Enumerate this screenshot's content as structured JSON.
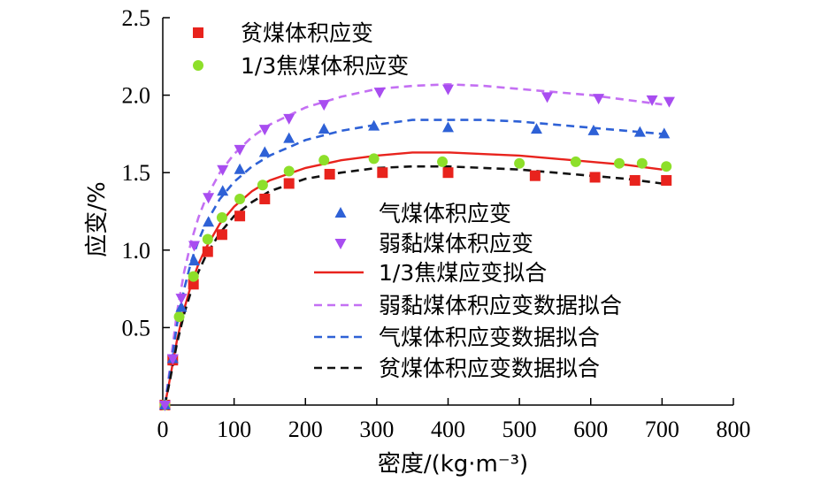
{
  "chart_data": {
    "type": "scatter",
    "xlabel": "密度/(kg·m⁻³)",
    "ylabel": "应变/%",
    "xlim": [
      0,
      800
    ],
    "ylim": [
      0,
      2.5
    ],
    "xticks": [
      "0",
      "100",
      "200",
      "300",
      "400",
      "500",
      "600",
      "700",
      "800"
    ],
    "yticks": [
      "0.5",
      "1.0",
      "1.5",
      "2.0",
      "2.5"
    ],
    "grid": false,
    "series": [
      {
        "name": "贫煤体积应变",
        "marker": "square",
        "color": "#e8231d",
        "points": [
          [
            3,
            0
          ],
          [
            14,
            0.29
          ],
          [
            43,
            0.78
          ],
          [
            63,
            0.99
          ],
          [
            83,
            1.1
          ],
          [
            108,
            1.22
          ],
          [
            143,
            1.33
          ],
          [
            177,
            1.43
          ],
          [
            234,
            1.49
          ],
          [
            308,
            1.5
          ],
          [
            400,
            1.5
          ],
          [
            522,
            1.48
          ],
          [
            606,
            1.47
          ],
          [
            662,
            1.45
          ],
          [
            706,
            1.45
          ]
        ]
      },
      {
        "name": "1/3焦煤体积应变",
        "marker": "circle",
        "color": "#8ddf2a",
        "points": [
          [
            3,
            0
          ],
          [
            23,
            0.57
          ],
          [
            43,
            0.83
          ],
          [
            63,
            1.07
          ],
          [
            83,
            1.21
          ],
          [
            108,
            1.33
          ],
          [
            140,
            1.42
          ],
          [
            177,
            1.51
          ],
          [
            226,
            1.58
          ],
          [
            296,
            1.59
          ],
          [
            392,
            1.57
          ],
          [
            500,
            1.56
          ],
          [
            579,
            1.57
          ],
          [
            640,
            1.56
          ],
          [
            672,
            1.56
          ],
          [
            706,
            1.54
          ]
        ]
      },
      {
        "name": "气煤体积应变",
        "marker": "triangle-up",
        "color": "#2e61d6",
        "points": [
          [
            3,
            0
          ],
          [
            14,
            0.3
          ],
          [
            26,
            0.63
          ],
          [
            44,
            0.93
          ],
          [
            64,
            1.18
          ],
          [
            84,
            1.38
          ],
          [
            108,
            1.52
          ],
          [
            143,
            1.63
          ],
          [
            177,
            1.72
          ],
          [
            226,
            1.78
          ],
          [
            296,
            1.8
          ],
          [
            400,
            1.79
          ],
          [
            524,
            1.78
          ],
          [
            604,
            1.77
          ],
          [
            669,
            1.76
          ],
          [
            703,
            1.75
          ]
        ]
      },
      {
        "name": "弱黏煤体积应变",
        "marker": "triangle-down",
        "color": "#a84df0",
        "points": [
          [
            3,
            0
          ],
          [
            14,
            0.3
          ],
          [
            26,
            0.69
          ],
          [
            44,
            1.03
          ],
          [
            64,
            1.34
          ],
          [
            84,
            1.52
          ],
          [
            108,
            1.65
          ],
          [
            143,
            1.78
          ],
          [
            177,
            1.85
          ],
          [
            226,
            1.94
          ],
          [
            304,
            2.02
          ],
          [
            400,
            2.04
          ],
          [
            539,
            1.99
          ],
          [
            611,
            1.98
          ],
          [
            686,
            1.97
          ],
          [
            710,
            1.96
          ]
        ]
      }
    ],
    "fits": [
      {
        "name": "1/3焦煤应变拟合",
        "color": "#e8231d",
        "dash": "solid",
        "points": [
          [
            3,
            0
          ],
          [
            10,
            0.17
          ],
          [
            20,
            0.42
          ],
          [
            30,
            0.62
          ],
          [
            40,
            0.78
          ],
          [
            50,
            0.91
          ],
          [
            60,
            1.01
          ],
          [
            80,
            1.17
          ],
          [
            100,
            1.28
          ],
          [
            125,
            1.38
          ],
          [
            150,
            1.45
          ],
          [
            200,
            1.53
          ],
          [
            250,
            1.58
          ],
          [
            300,
            1.61
          ],
          [
            350,
            1.63
          ],
          [
            400,
            1.63
          ],
          [
            450,
            1.62
          ],
          [
            500,
            1.61
          ],
          [
            550,
            1.59
          ],
          [
            600,
            1.57
          ],
          [
            650,
            1.55
          ],
          [
            700,
            1.52
          ]
        ]
      },
      {
        "name": "弱黏煤体积应变数据拟合",
        "color": "#c470f3",
        "dash": "dashed",
        "points": [
          [
            3,
            0
          ],
          [
            10,
            0.24
          ],
          [
            20,
            0.6
          ],
          [
            30,
            0.86
          ],
          [
            40,
            1.06
          ],
          [
            50,
            1.21
          ],
          [
            60,
            1.33
          ],
          [
            80,
            1.5
          ],
          [
            100,
            1.62
          ],
          [
            125,
            1.73
          ],
          [
            150,
            1.81
          ],
          [
            200,
            1.92
          ],
          [
            250,
            1.99
          ],
          [
            300,
            2.04
          ],
          [
            350,
            2.06
          ],
          [
            400,
            2.07
          ],
          [
            450,
            2.06
          ],
          [
            500,
            2.04
          ],
          [
            550,
            2.02
          ],
          [
            600,
            2.0
          ],
          [
            650,
            1.97
          ],
          [
            700,
            1.94
          ]
        ]
      },
      {
        "name": "气煤体积应变数据拟合",
        "color": "#2e61d6",
        "dash": "dashed",
        "points": [
          [
            3,
            0
          ],
          [
            10,
            0.21
          ],
          [
            20,
            0.52
          ],
          [
            30,
            0.75
          ],
          [
            40,
            0.93
          ],
          [
            50,
            1.06
          ],
          [
            60,
            1.17
          ],
          [
            80,
            1.33
          ],
          [
            100,
            1.44
          ],
          [
            125,
            1.54
          ],
          [
            150,
            1.61
          ],
          [
            200,
            1.71
          ],
          [
            250,
            1.77
          ],
          [
            300,
            1.81
          ],
          [
            350,
            1.84
          ],
          [
            400,
            1.84
          ],
          [
            450,
            1.84
          ],
          [
            500,
            1.83
          ],
          [
            550,
            1.81
          ],
          [
            600,
            1.79
          ],
          [
            650,
            1.77
          ],
          [
            700,
            1.75
          ]
        ]
      },
      {
        "name": "贫煤体积应变数据拟合",
        "color": "#111111",
        "dash": "dashed",
        "points": [
          [
            3,
            0
          ],
          [
            10,
            0.16
          ],
          [
            20,
            0.4
          ],
          [
            30,
            0.59
          ],
          [
            40,
            0.74
          ],
          [
            50,
            0.86
          ],
          [
            60,
            0.96
          ],
          [
            80,
            1.11
          ],
          [
            100,
            1.22
          ],
          [
            125,
            1.31
          ],
          [
            150,
            1.38
          ],
          [
            200,
            1.46
          ],
          [
            250,
            1.5
          ],
          [
            300,
            1.53
          ],
          [
            350,
            1.54
          ],
          [
            400,
            1.54
          ],
          [
            450,
            1.53
          ],
          [
            500,
            1.52
          ],
          [
            550,
            1.5
          ],
          [
            600,
            1.48
          ],
          [
            650,
            1.46
          ],
          [
            700,
            1.43
          ]
        ]
      }
    ],
    "legend_top": [
      "贫煤体积应变",
      "1/3焦煤体积应变"
    ],
    "legend_bottom": [
      "气煤体积应变",
      "弱黏煤体积应变",
      "1/3焦煤应变拟合",
      "弱黏煤体积应变数据拟合",
      "气煤体积应变数据拟合",
      "贫煤体积应变数据拟合"
    ]
  }
}
